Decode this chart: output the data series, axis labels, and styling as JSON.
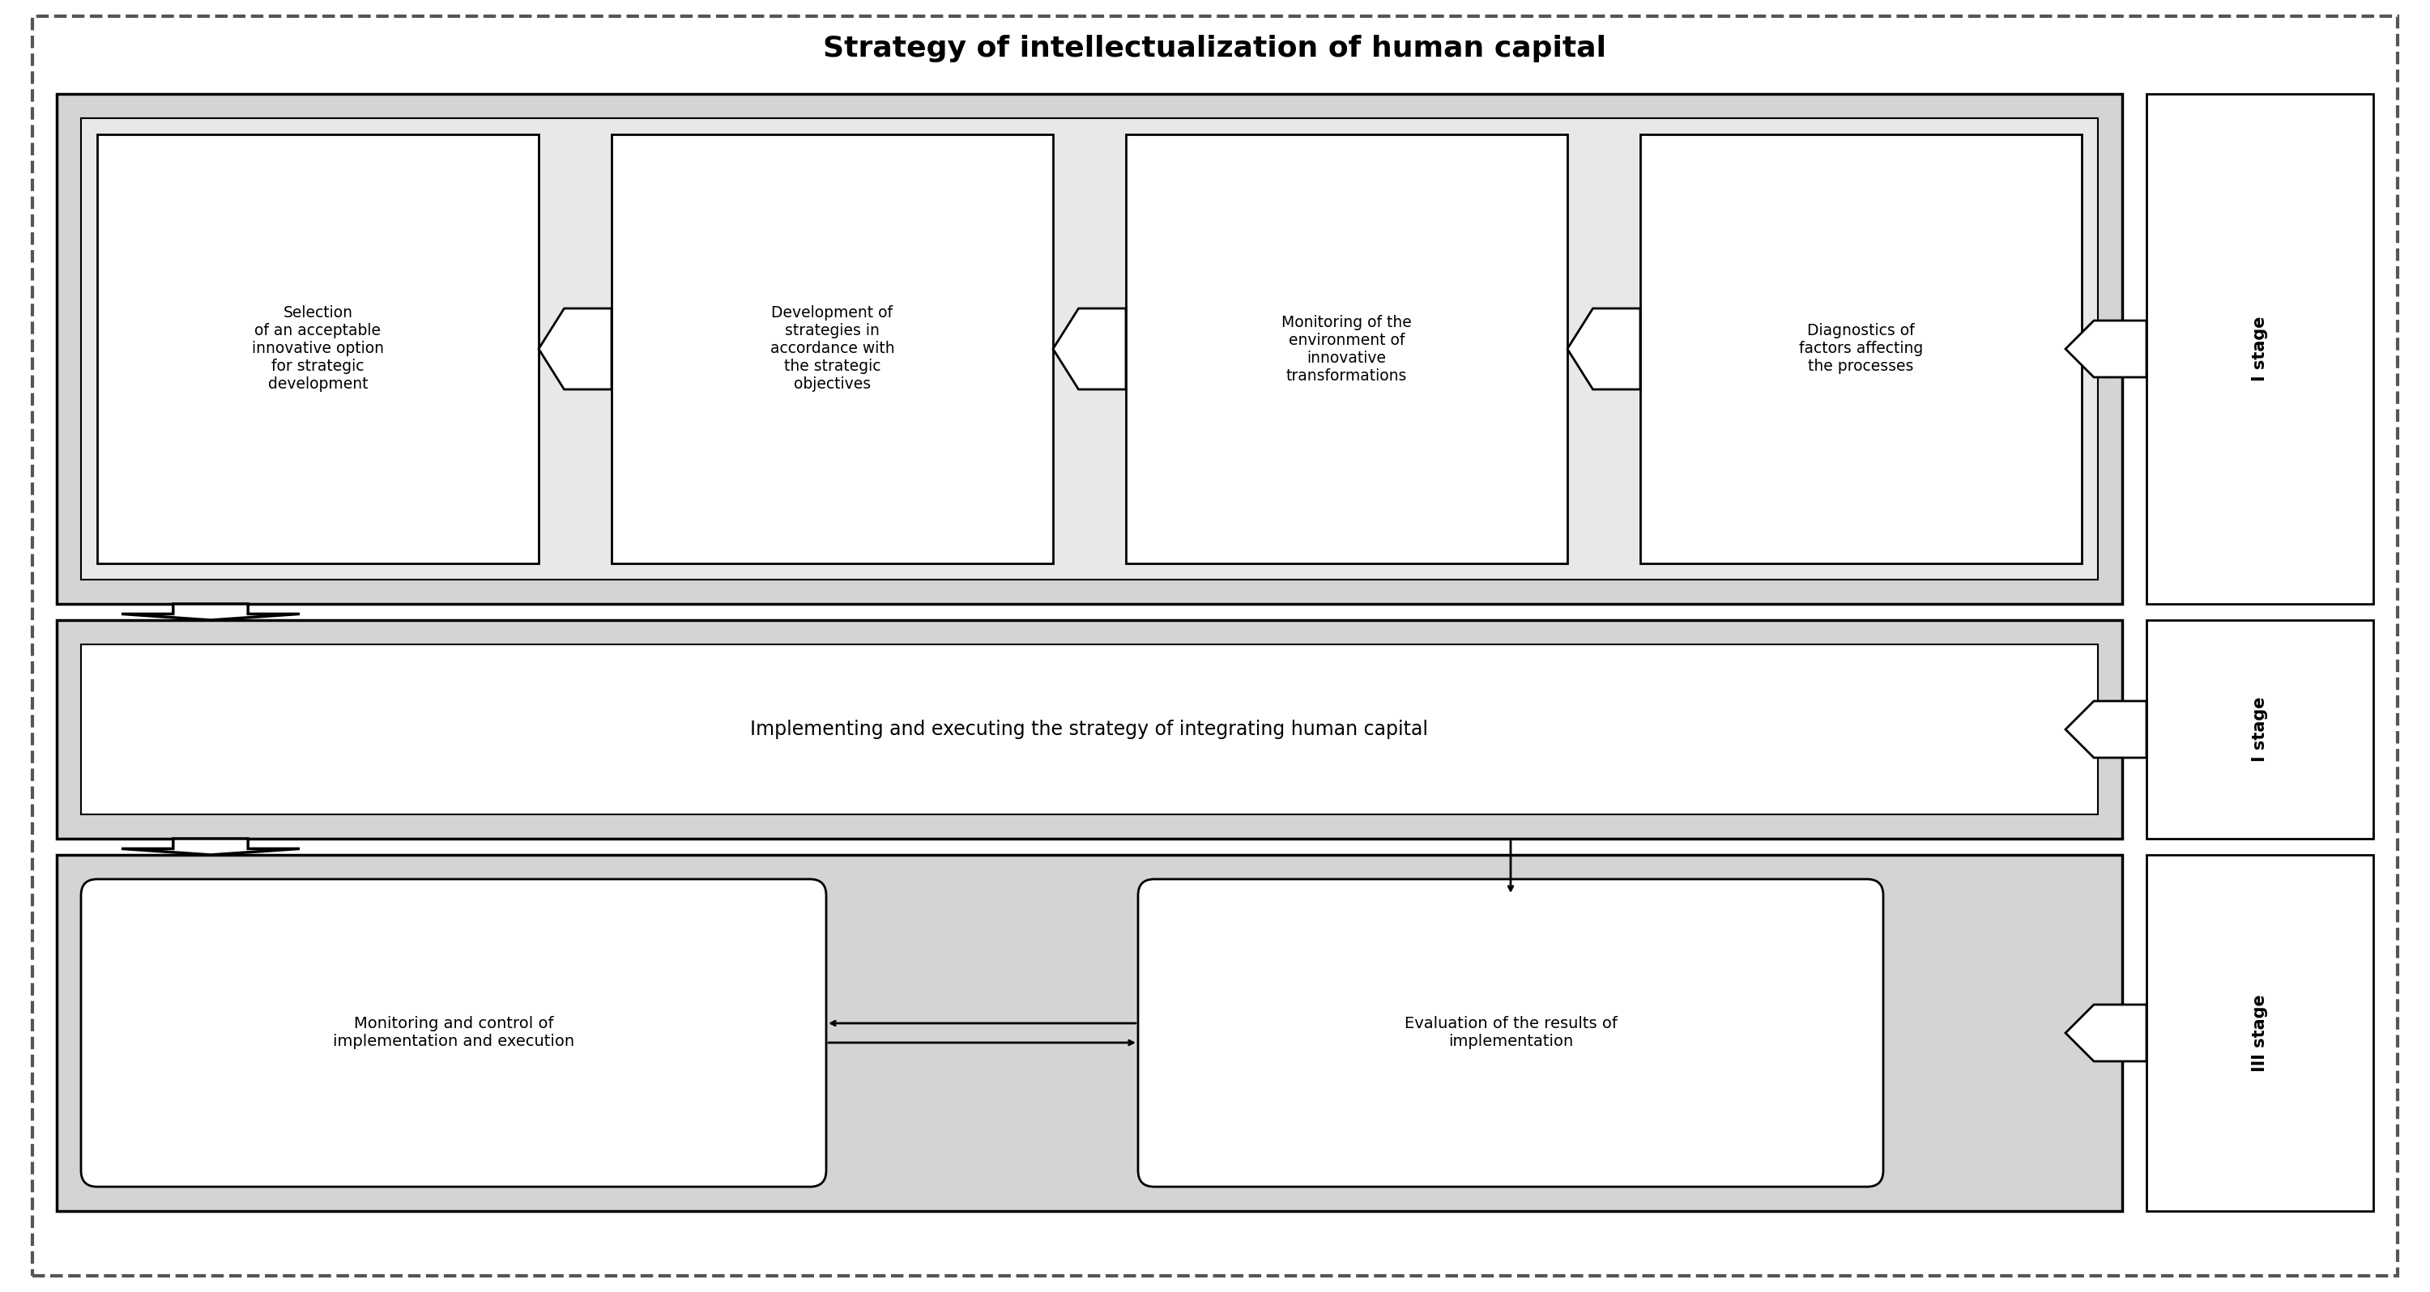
{
  "title": "Strategy of intellectualization of human capital",
  "title_fontsize": 26,
  "bg_color": "#ffffff",
  "text_color": "#000000",
  "stage_labels": [
    "I stage",
    "I stage",
    "III stage"
  ],
  "row1_boxes": [
    "Selection\nof an acceptable\ninnovative option\nfor strategic\ndevelopment",
    "Development of\nstrategies in\naccordance with\nthe strategic\nobjectives",
    "Monitoring of the\nenvironment of\ninnovative\ntransformations",
    "Diagnostics of\nfactors affecting\nthe processes"
  ],
  "row2_text": "Implementing and executing the strategy of integrating human capital",
  "row3_box1": "Monitoring and control of\nimplementation and execution",
  "row3_box2": "Evaluation of the results of\nimplementation",
  "outer_gray": "#d0d0d0",
  "inner_gray": "#e8e8e8",
  "box_white": "#ffffff"
}
